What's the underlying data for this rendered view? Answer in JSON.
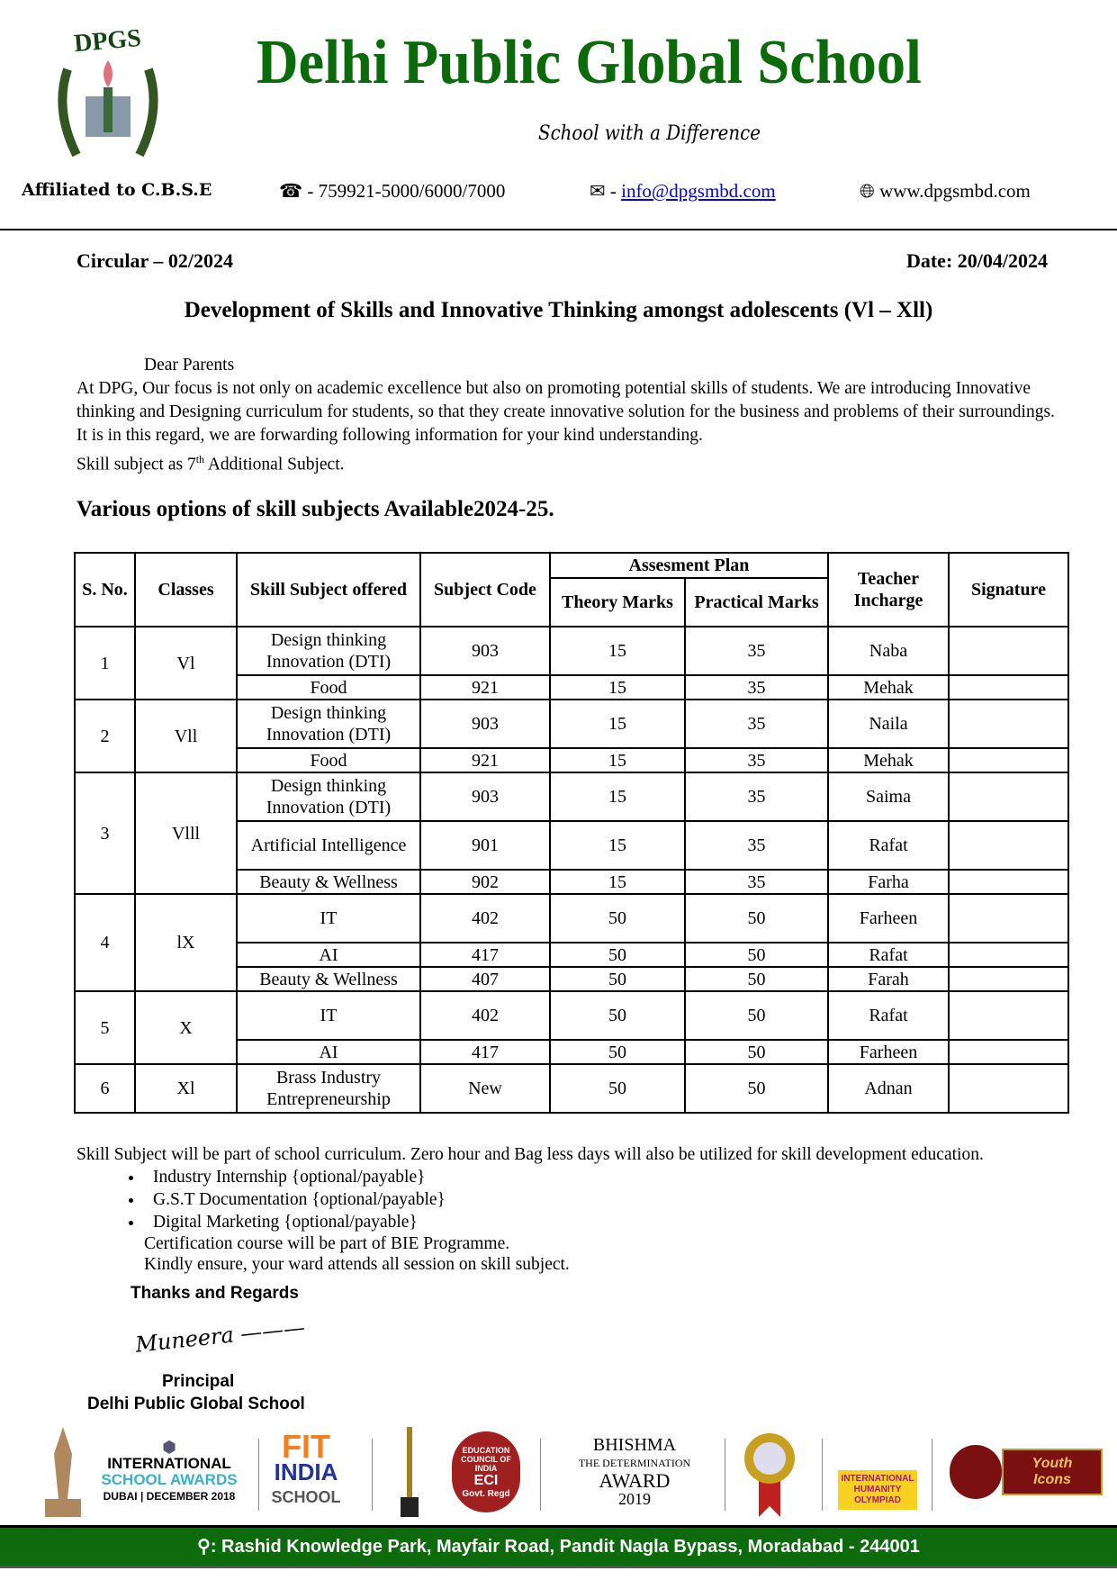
{
  "header": {
    "logo_text": "DPGS",
    "school_name": "Delhi Public Global School",
    "tagline": "School with a Difference",
    "affiliation": "Affiliated to C.B.S.E",
    "phone": "- 759921-5000/6000/7000",
    "email_prefix": "-",
    "email": "info@dpgsmbd.com",
    "website": "www.dpgsmbd.com"
  },
  "circular": {
    "number": "Circular – 02/2024",
    "date": "Date: 20/04/2024",
    "title": "Development of Skills and Innovative Thinking amongst adolescents (Vl – Xll)",
    "salutation": "Dear Parents",
    "paragraph": "At DPG, Our focus is not only on academic excellence but also on promoting potential skills of students. We are introducing Innovative thinking and Designing curriculum for students, so that they create innovative solution for the business and problems of their surroundings. It is in this regard, we are forwarding following information for your kind understanding.",
    "skill_line_a": "Skill subject as 7",
    "skill_line_sup": "th",
    "skill_line_b": " Additional Subject.",
    "subheading": "Various options of skill subjects Available2024-25."
  },
  "table": {
    "headers": {
      "sno": "S. No.",
      "classes": "Classes",
      "subject": "Skill Subject offered",
      "code": "Subject Code",
      "plan": "Assesment Plan",
      "theory": "Theory Marks",
      "practical": "Practical Marks",
      "teacher": "Teacher Incharge",
      "signature": "Signature"
    },
    "groups": [
      {
        "sno": "1",
        "class": "Vl",
        "rows": [
          [
            "Design thinking Innovation (DTI)",
            "903",
            "15",
            "35",
            "Naba"
          ],
          [
            "Food",
            "921",
            "15",
            "35",
            "Mehak"
          ]
        ]
      },
      {
        "sno": "2",
        "class": "Vll",
        "rows": [
          [
            "Design thinking Innovation (DTI)",
            "903",
            "15",
            "35",
            "Naila"
          ],
          [
            "Food",
            "921",
            "15",
            "35",
            "Mehak"
          ]
        ]
      },
      {
        "sno": "3",
        "class": "Vlll",
        "rows": [
          [
            "Design thinking Innovation (DTI)",
            "903",
            "15",
            "35",
            "Saima"
          ],
          [
            "Artificial Intelligence",
            "901",
            "15",
            "35",
            "Rafat"
          ],
          [
            "Beauty & Wellness",
            "902",
            "15",
            "35",
            "Farha"
          ]
        ]
      },
      {
        "sno": "4",
        "class": "lX",
        "rows": [
          [
            "IT",
            "402",
            "50",
            "50",
            "Farheen"
          ],
          [
            "AI",
            "417",
            "50",
            "50",
            "Rafat"
          ],
          [
            "Beauty & Wellness",
            "407",
            "50",
            "50",
            "Farah"
          ]
        ]
      },
      {
        "sno": "5",
        "class": "X",
        "rows": [
          [
            "IT",
            "402",
            "50",
            "50",
            "Rafat"
          ],
          [
            "AI",
            "417",
            "50",
            "50",
            "Farheen"
          ]
        ]
      },
      {
        "sno": "6",
        "class": "Xl",
        "rows": [
          [
            "Brass Industry Entrepreneurship",
            "New",
            "50",
            "50",
            "Adnan"
          ]
        ]
      }
    ]
  },
  "notes": {
    "line": "Skill Subject will be part of school curriculum. Zero hour and Bag less days will also be utilized for skill development education.",
    "bullets": [
      "Industry Internship {optional/payable}",
      "G.S.T Documentation {optional/payable}",
      "Digital Marketing {optional/payable}"
    ],
    "cert": "Certification course will be part of  BIE Programme.",
    "ensure": "Kindly ensure,  your ward attends all session on skill subject.",
    "thanks": "Thanks and Regards",
    "signature": "Muneera",
    "designation": "Principal",
    "school": "Delhi Public Global School"
  },
  "awards": {
    "isa": [
      "INTERNATIONAL",
      "SCHOOL AWARDS",
      "DUBAI | DECEMBER 2018"
    ],
    "fit": [
      "FIT",
      "INDIA",
      "SCHOOL"
    ],
    "eci": [
      "EDUCATION COUNCIL OF INDIA",
      "ECI",
      "Govt. Regd"
    ],
    "bhishma": [
      "BHISHMA",
      "THE DETERMINATION",
      "AWARD",
      "2019"
    ],
    "iho": [
      "INTERNATIONAL",
      "HUMANITY",
      "OLYMPIAD"
    ],
    "youth": "Youth Icons"
  },
  "footer": {
    "address": ": Rashid Knowledge Park, Mayfair Road, Pandit Nagla Bypass, Moradabad - 244001"
  },
  "colors": {
    "brand_green": "#0b6b0b",
    "footer_green": "#0d6a0d",
    "link": "#0000ee"
  }
}
